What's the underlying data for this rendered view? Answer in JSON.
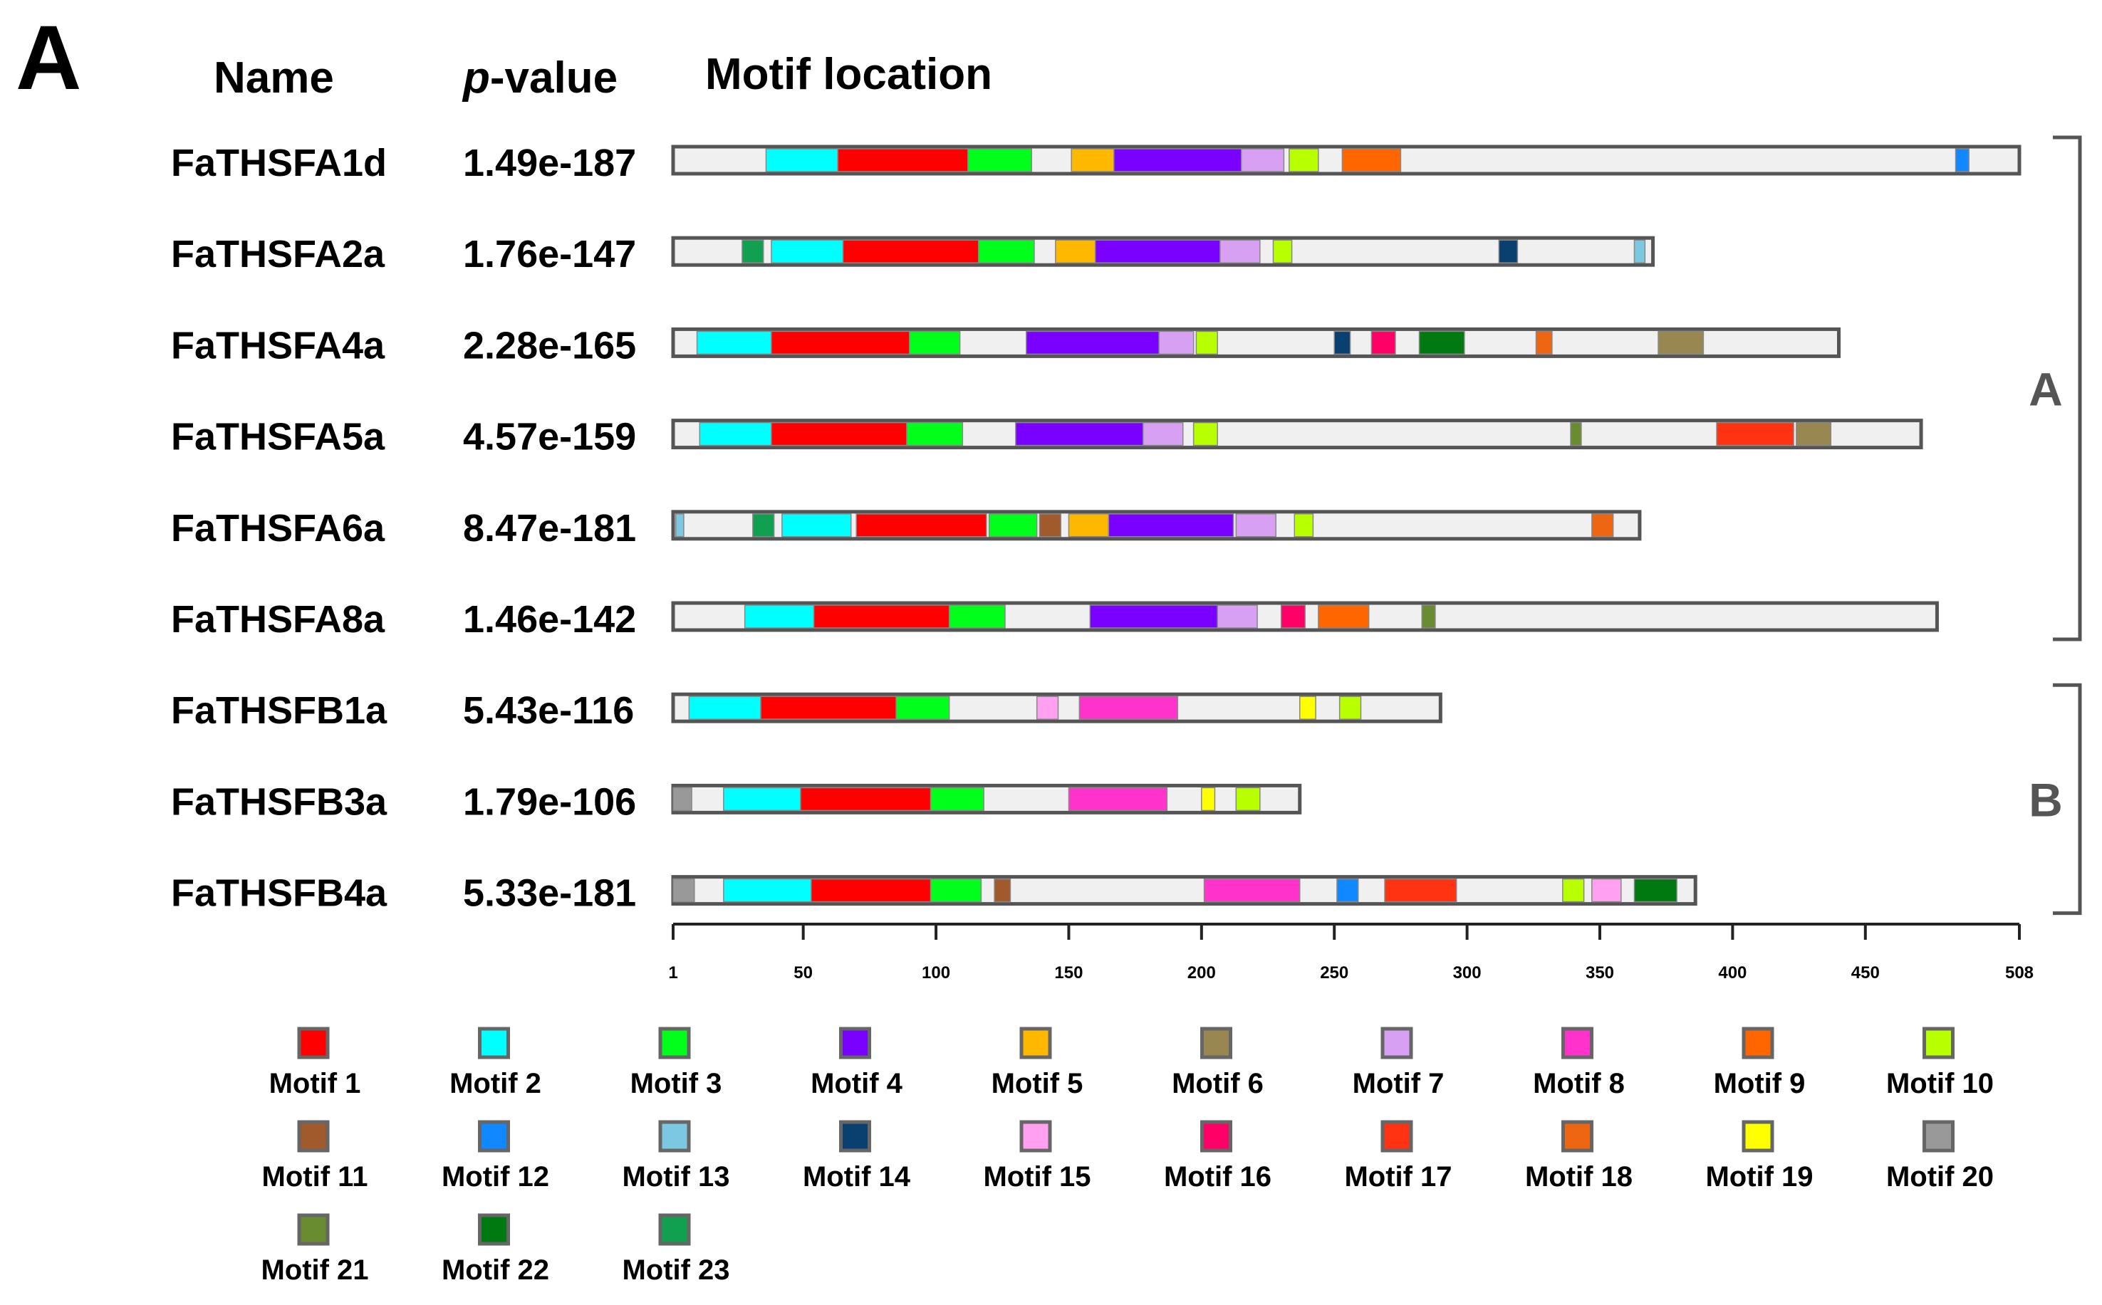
{
  "panel_label": "A",
  "headers": {
    "name": "Name",
    "pvalue_italic": "p",
    "pvalue_rest": "-value",
    "location": "Motif location"
  },
  "groups": [
    {
      "label": "A",
      "first_row": 0,
      "last_row": 5
    },
    {
      "label": "B",
      "first_row": 6,
      "last_row": 8
    }
  ],
  "axis": {
    "min": 1,
    "max": 508,
    "ticks": [
      "1",
      "50",
      "100",
      "150",
      "200",
      "250",
      "300",
      "350",
      "400",
      "450",
      "508"
    ]
  },
  "motif_colors": {
    "1": "#ff0000",
    "2": "#00ffff",
    "3": "#00ff1a",
    "4": "#7a00ff",
    "5": "#ffb800",
    "6": "#998752",
    "7": "#d8a0f2",
    "8": "#ff33cc",
    "9": "#ff6600",
    "10": "#b8ff00",
    "11": "#a05a2c",
    "12": "#1188ff",
    "13": "#7cc8e0",
    "14": "#0a4070",
    "15": "#ffa0f0",
    "16": "#ff0066",
    "17": "#ff3311",
    "18": "#ee6611",
    "19": "#ffff00",
    "20": "#999999",
    "21": "#6a8c30",
    "22": "#007a10",
    "23": "#10a050"
  },
  "proteins": [
    {
      "name": "FaTHSFA1d",
      "pvalue": "1.49e-187",
      "length": 508,
      "motifs": [
        [
          36,
          2,
          62
        ],
        [
          63,
          1,
          111
        ],
        [
          112,
          3,
          135
        ],
        [
          151,
          5,
          166
        ],
        [
          167,
          4,
          214
        ],
        [
          215,
          7,
          230
        ],
        [
          233,
          10,
          243
        ],
        [
          253,
          9,
          274
        ],
        [
          484,
          12,
          488
        ]
      ]
    },
    {
      "name": "FaTHSFA2a",
      "pvalue": "1.76e-147",
      "length": 370,
      "motifs": [
        [
          27,
          23,
          34
        ],
        [
          38,
          2,
          64
        ],
        [
          65,
          1,
          115
        ],
        [
          116,
          3,
          136
        ],
        [
          145,
          5,
          159
        ],
        [
          160,
          4,
          206
        ],
        [
          207,
          7,
          221
        ],
        [
          227,
          10,
          233
        ],
        [
          312,
          14,
          318
        ],
        [
          363,
          13,
          366
        ]
      ]
    },
    {
      "name": "FaTHSFA4a",
      "pvalue": "2.28e-165",
      "length": 440,
      "motifs": [
        [
          10,
          2,
          37
        ],
        [
          38,
          1,
          89
        ],
        [
          90,
          3,
          108
        ],
        [
          134,
          4,
          183
        ],
        [
          184,
          7,
          196
        ],
        [
          198,
          10,
          205
        ],
        [
          250,
          14,
          255
        ],
        [
          264,
          16,
          272
        ],
        [
          282,
          22,
          298
        ],
        [
          326,
          18,
          331
        ],
        [
          372,
          6,
          388
        ]
      ]
    },
    {
      "name": "FaTHSFA5a",
      "pvalue": "4.57e-159",
      "length": 471,
      "motifs": [
        [
          11,
          2,
          37
        ],
        [
          38,
          1,
          88
        ],
        [
          89,
          3,
          109
        ],
        [
          130,
          4,
          177
        ],
        [
          178,
          7,
          192
        ],
        [
          197,
          10,
          205
        ],
        [
          339,
          21,
          342
        ],
        [
          394,
          17,
          422
        ],
        [
          424,
          6,
          436
        ]
      ]
    },
    {
      "name": "FaTHSFA6a",
      "pvalue": "8.47e-181",
      "length": 365,
      "motifs": [
        [
          2,
          13,
          4
        ],
        [
          31,
          23,
          38
        ],
        [
          42,
          2,
          67
        ],
        [
          70,
          1,
          118
        ],
        [
          120,
          3,
          137
        ],
        [
          139,
          11,
          146
        ],
        [
          150,
          5,
          164
        ],
        [
          165,
          4,
          211
        ],
        [
          213,
          7,
          227
        ],
        [
          235,
          10,
          241
        ],
        [
          347,
          18,
          354
        ]
      ]
    },
    {
      "name": "FaTHSFA8a",
      "pvalue": "1.46e-142",
      "length": 477,
      "motifs": [
        [
          28,
          2,
          53
        ],
        [
          54,
          1,
          104
        ],
        [
          105,
          3,
          125
        ],
        [
          158,
          4,
          205
        ],
        [
          206,
          7,
          220
        ],
        [
          230,
          16,
          238
        ],
        [
          244,
          9,
          262
        ],
        [
          283,
          21,
          287
        ]
      ]
    },
    {
      "name": "FaTHSFB1a",
      "pvalue": "5.43e-116",
      "length": 290,
      "motifs": [
        [
          7,
          2,
          33
        ],
        [
          34,
          1,
          84
        ],
        [
          85,
          3,
          104
        ],
        [
          138,
          15,
          145
        ],
        [
          154,
          8,
          190
        ],
        [
          237,
          19,
          242
        ],
        [
          252,
          10,
          259
        ]
      ]
    },
    {
      "name": "FaTHSFB3a",
      "pvalue": "1.79e-106",
      "length": 237,
      "motifs": [
        [
          1,
          20,
          7
        ],
        [
          20,
          2,
          48
        ],
        [
          49,
          1,
          97
        ],
        [
          98,
          3,
          117
        ],
        [
          150,
          8,
          186
        ],
        [
          200,
          19,
          204
        ],
        [
          213,
          10,
          221
        ]
      ]
    },
    {
      "name": "FaTHSFB4a",
      "pvalue": "5.33e-181",
      "length": 386,
      "motifs": [
        [
          1,
          20,
          8
        ],
        [
          20,
          2,
          52
        ],
        [
          53,
          1,
          97
        ],
        [
          98,
          3,
          116
        ],
        [
          122,
          11,
          127
        ],
        [
          201,
          8,
          236
        ],
        [
          251,
          12,
          258
        ],
        [
          269,
          17,
          295
        ],
        [
          336,
          10,
          343
        ],
        [
          347,
          15,
          357
        ],
        [
          363,
          22,
          378
        ]
      ]
    }
  ],
  "legend": [
    "Motif 1",
    "Motif 2",
    "Motif 3",
    "Motif 4",
    "Motif 5",
    "Motif 6",
    "Motif 7",
    "Motif 8",
    "Motif 9",
    "Motif 10",
    "Motif 11",
    "Motif 12",
    "Motif 13",
    "Motif 14",
    "Motif 15",
    "Motif 16",
    "Motif 17",
    "Motif 18",
    "Motif 19",
    "Motif 20",
    "Motif 21",
    "Motif 22",
    "Motif 23"
  ]
}
